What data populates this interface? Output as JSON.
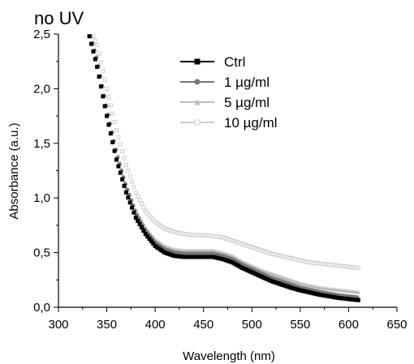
{
  "chart_data": {
    "type": "scatter",
    "annotation": "no UV",
    "xlabel": "Wavelength (nm)",
    "ylabel": "Absorbance (a.u.)",
    "xlim": [
      300,
      650
    ],
    "ylim": [
      0,
      2.5
    ],
    "xticks": [
      300,
      350,
      400,
      450,
      500,
      550,
      600,
      650
    ],
    "xtick_labels": [
      "300",
      "350",
      "400",
      "450",
      "500",
      "550",
      "600",
      "650"
    ],
    "yticks": [
      0,
      0.5,
      1.0,
      1.5,
      2.0,
      2.5
    ],
    "ytick_labels": [
      "0,0",
      "0,5",
      "1,0",
      "1,5",
      "2,0",
      "2,5"
    ],
    "grid": false,
    "legend_position": "top-right",
    "series": [
      {
        "name": "Ctrl",
        "color": "#000000",
        "marker": "filled-square",
        "points": [
          [
            332,
            2.48
          ],
          [
            340,
            2.2
          ],
          [
            350,
            1.75
          ],
          [
            360,
            1.35
          ],
          [
            370,
            1.05
          ],
          [
            380,
            0.82
          ],
          [
            390,
            0.67
          ],
          [
            400,
            0.56
          ],
          [
            410,
            0.5
          ],
          [
            420,
            0.47
          ],
          [
            430,
            0.46
          ],
          [
            440,
            0.46
          ],
          [
            450,
            0.46
          ],
          [
            460,
            0.46
          ],
          [
            470,
            0.44
          ],
          [
            480,
            0.41
          ],
          [
            490,
            0.36
          ],
          [
            500,
            0.32
          ],
          [
            510,
            0.28
          ],
          [
            520,
            0.24
          ],
          [
            530,
            0.21
          ],
          [
            540,
            0.18
          ],
          [
            550,
            0.155
          ],
          [
            560,
            0.135
          ],
          [
            570,
            0.115
          ],
          [
            580,
            0.1
          ],
          [
            590,
            0.085
          ],
          [
            600,
            0.075
          ],
          [
            610,
            0.065
          ]
        ]
      },
      {
        "name": "1 µg/ml",
        "color": "#777777",
        "marker": "filled-circle",
        "points": [
          [
            333,
            2.48
          ],
          [
            340,
            2.25
          ],
          [
            350,
            1.8
          ],
          [
            360,
            1.4
          ],
          [
            370,
            1.1
          ],
          [
            380,
            0.86
          ],
          [
            390,
            0.7
          ],
          [
            400,
            0.59
          ],
          [
            410,
            0.53
          ],
          [
            420,
            0.5
          ],
          [
            430,
            0.49
          ],
          [
            440,
            0.49
          ],
          [
            450,
            0.49
          ],
          [
            460,
            0.49
          ],
          [
            470,
            0.47
          ],
          [
            480,
            0.44
          ],
          [
            490,
            0.39
          ],
          [
            500,
            0.35
          ],
          [
            510,
            0.31
          ],
          [
            520,
            0.27
          ],
          [
            530,
            0.24
          ],
          [
            540,
            0.21
          ],
          [
            550,
            0.18
          ],
          [
            560,
            0.16
          ],
          [
            570,
            0.14
          ],
          [
            580,
            0.125
          ],
          [
            590,
            0.11
          ],
          [
            600,
            0.1
          ],
          [
            610,
            0.09
          ]
        ]
      },
      {
        "name": "5 µg/ml",
        "color": "#bbbbbb",
        "marker": "filled-triangle",
        "points": [
          [
            334,
            2.48
          ],
          [
            340,
            2.3
          ],
          [
            350,
            1.85
          ],
          [
            360,
            1.45
          ],
          [
            370,
            1.13
          ],
          [
            380,
            0.89
          ],
          [
            390,
            0.73
          ],
          [
            400,
            0.62
          ],
          [
            410,
            0.56
          ],
          [
            420,
            0.53
          ],
          [
            430,
            0.52
          ],
          [
            440,
            0.52
          ],
          [
            450,
            0.52
          ],
          [
            460,
            0.52
          ],
          [
            470,
            0.5
          ],
          [
            480,
            0.47
          ],
          [
            490,
            0.42
          ],
          [
            500,
            0.38
          ],
          [
            510,
            0.34
          ],
          [
            520,
            0.31
          ],
          [
            530,
            0.28
          ],
          [
            540,
            0.25
          ],
          [
            550,
            0.22
          ],
          [
            560,
            0.2
          ],
          [
            570,
            0.18
          ],
          [
            580,
            0.17
          ],
          [
            590,
            0.16
          ],
          [
            600,
            0.15
          ],
          [
            610,
            0.14
          ]
        ]
      },
      {
        "name": "10 µg/ml",
        "color": "#cccccc",
        "marker": "open-square",
        "points": [
          [
            336,
            2.48
          ],
          [
            340,
            2.4
          ],
          [
            350,
            2.0
          ],
          [
            360,
            1.62
          ],
          [
            370,
            1.3
          ],
          [
            380,
            1.05
          ],
          [
            390,
            0.88
          ],
          [
            400,
            0.78
          ],
          [
            410,
            0.72
          ],
          [
            420,
            0.69
          ],
          [
            430,
            0.67
          ],
          [
            440,
            0.66
          ],
          [
            450,
            0.66
          ],
          [
            460,
            0.65
          ],
          [
            470,
            0.64
          ],
          [
            480,
            0.61
          ],
          [
            490,
            0.58
          ],
          [
            500,
            0.55
          ],
          [
            510,
            0.52
          ],
          [
            520,
            0.49
          ],
          [
            530,
            0.47
          ],
          [
            540,
            0.45
          ],
          [
            550,
            0.43
          ],
          [
            560,
            0.41
          ],
          [
            570,
            0.4
          ],
          [
            580,
            0.39
          ],
          [
            590,
            0.38
          ],
          [
            600,
            0.37
          ],
          [
            610,
            0.36
          ]
        ]
      }
    ]
  }
}
